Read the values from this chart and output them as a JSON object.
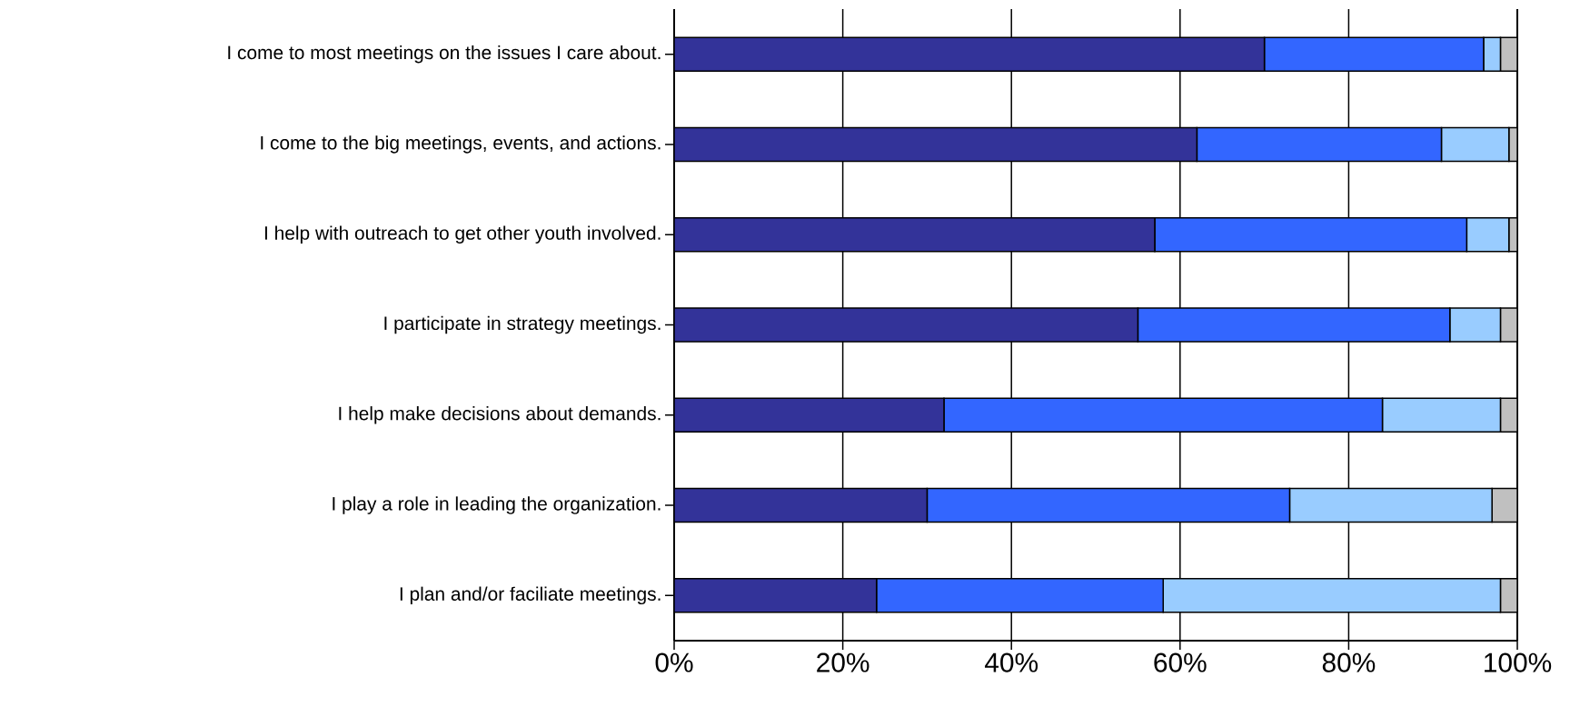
{
  "chart_data": {
    "type": "bar",
    "orientation": "horizontal",
    "stacked": true,
    "grid": "x",
    "categories": [
      "I come to most meetings on the issues I care about.",
      "I come to the big meetings, events, and actions.",
      "I help with outreach to get other youth involved.",
      "I participate in strategy meetings.",
      "I help make decisions about demands.",
      "I play a role in leading the organization.",
      "I plan and/or faciliate meetings."
    ],
    "series": [
      {
        "color": "#333399",
        "values": [
          70,
          62,
          57,
          55,
          32,
          30,
          24
        ]
      },
      {
        "color": "#3366ff",
        "values": [
          26,
          29,
          37,
          37,
          52,
          43,
          34
        ]
      },
      {
        "color": "#99ccff",
        "values": [
          2,
          8,
          5,
          6,
          14,
          24,
          40
        ]
      },
      {
        "color": "#c0c0c0",
        "values": [
          2,
          1,
          1,
          2,
          2,
          3,
          2
        ]
      }
    ],
    "xlim": [
      0,
      100
    ],
    "xticks": [
      {
        "value": 0,
        "label": "0%"
      },
      {
        "value": 20,
        "label": "20%"
      },
      {
        "value": 40,
        "label": "40%"
      },
      {
        "value": 60,
        "label": "60%"
      },
      {
        "value": 80,
        "label": "80%"
      },
      {
        "value": 100,
        "label": "100%"
      }
    ]
  }
}
